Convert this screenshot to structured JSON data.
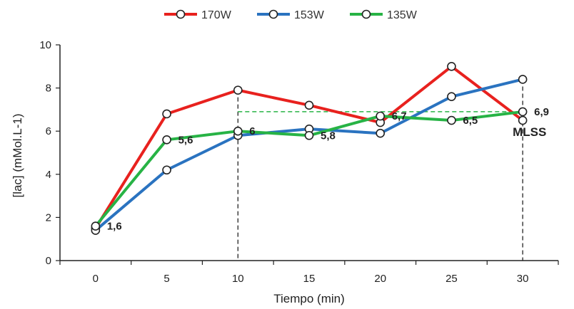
{
  "chart_data": {
    "type": "line",
    "xlabel": "Tiempo (min)",
    "ylabel": "[lac] (mMol.L-1)",
    "x": [
      0,
      5,
      10,
      15,
      20,
      25,
      30
    ],
    "xlim": [
      0,
      30
    ],
    "ylim": [
      0,
      10
    ],
    "yticks": [
      0,
      2,
      4,
      6,
      8,
      10
    ],
    "legend_position": "top",
    "grid": false,
    "series": [
      {
        "name": "170W",
        "color": "#e8211e",
        "values": [
          1.5,
          6.8,
          7.9,
          7.2,
          6.4,
          9.0,
          6.5
        ]
      },
      {
        "name": "153W",
        "color": "#2a73c0",
        "values": [
          1.4,
          4.2,
          5.8,
          6.1,
          5.9,
          7.6,
          8.4
        ]
      },
      {
        "name": "135W",
        "color": "#27b345",
        "values": [
          1.6,
          5.6,
          6.0,
          5.8,
          6.7,
          6.5,
          6.9
        ]
      }
    ],
    "data_labels": [
      {
        "x": 0,
        "y": 1.6,
        "text": "1,6"
      },
      {
        "x": 5,
        "y": 5.6,
        "text": "5,6"
      },
      {
        "x": 10,
        "y": 6.0,
        "text": "6"
      },
      {
        "x": 15,
        "y": 5.8,
        "text": "5,8"
      },
      {
        "x": 20,
        "y": 6.7,
        "text": "6,7"
      },
      {
        "x": 25,
        "y": 6.5,
        "text": "6,5"
      },
      {
        "x": 30,
        "y": 6.9,
        "text": "6,9"
      }
    ],
    "annotations": {
      "mlss_label": "MLSS",
      "mlss_level": 6.9,
      "vertical_markers": [
        10,
        30
      ]
    }
  }
}
